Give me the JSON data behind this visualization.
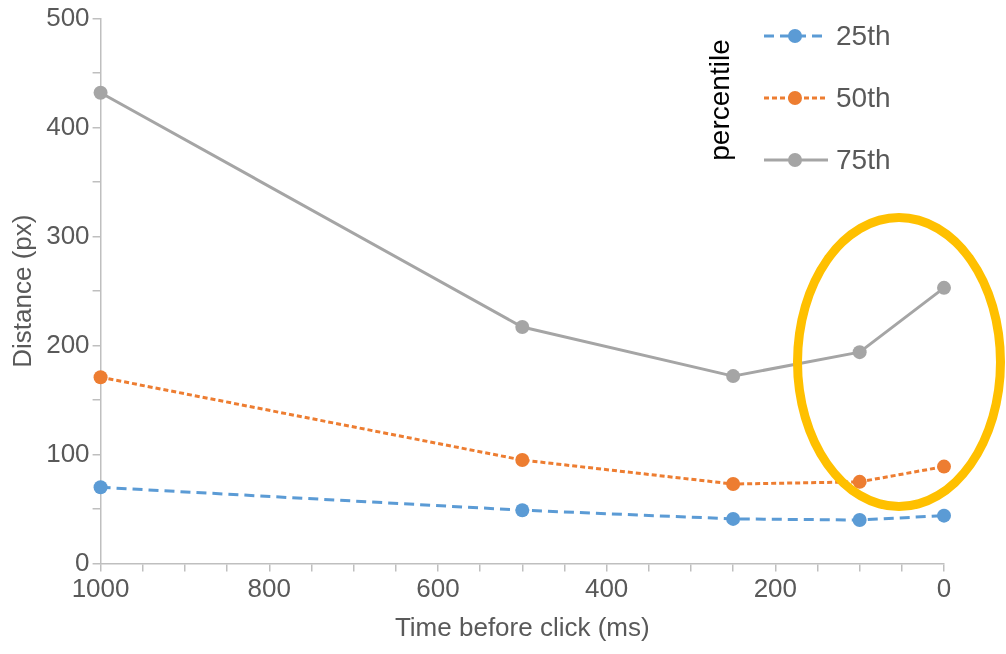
{
  "chart_data": {
    "type": "line",
    "xlabel": "Time before click (ms)",
    "ylabel": "Distance (px)",
    "legend_title": "percentile",
    "x": [
      1000,
      500,
      250,
      100,
      0
    ],
    "xlim": [
      1000,
      0
    ],
    "xticks": [
      1000,
      {
        "value": 950,
        "label": null
      },
      {
        "value": 900,
        "label": null
      },
      {
        "value": 850,
        "label": null
      },
      800,
      {
        "value": 750,
        "label": null
      },
      {
        "value": 700,
        "label": null
      },
      {
        "value": 650,
        "label": null
      },
      600,
      {
        "value": 550,
        "label": null
      },
      {
        "value": 500,
        "label": null
      },
      {
        "value": 450,
        "label": null
      },
      400,
      {
        "value": 350,
        "label": null
      },
      {
        "value": 300,
        "label": null
      },
      {
        "value": 250,
        "label": null
      },
      200,
      {
        "value": 150,
        "label": null
      },
      {
        "value": 100,
        "label": null
      },
      {
        "value": 50,
        "label": null
      },
      0
    ],
    "ylim": [
      0,
      500
    ],
    "yticks": [
      0,
      {
        "value": 50,
        "label": null
      },
      100,
      {
        "value": 150,
        "label": null
      },
      200,
      {
        "value": 250,
        "label": null
      },
      300,
      {
        "value": 350,
        "label": null
      },
      400,
      {
        "value": 450,
        "label": null
      },
      500
    ],
    "series": [
      {
        "name": "25th",
        "color": "#5b9bd5",
        "line_style": "dashed",
        "values": [
          70,
          49,
          41,
          40,
          44
        ]
      },
      {
        "name": "50th",
        "color": "#ed7d31",
        "line_style": "dotted",
        "values": [
          171,
          95,
          73,
          75,
          89
        ]
      },
      {
        "name": "75th",
        "color": "#a5a5a5",
        "line_style": "solid",
        "values": [
          432,
          217,
          172,
          194,
          253
        ]
      }
    ],
    "marker": "circle",
    "legend": "top right",
    "grid": false
  }
}
